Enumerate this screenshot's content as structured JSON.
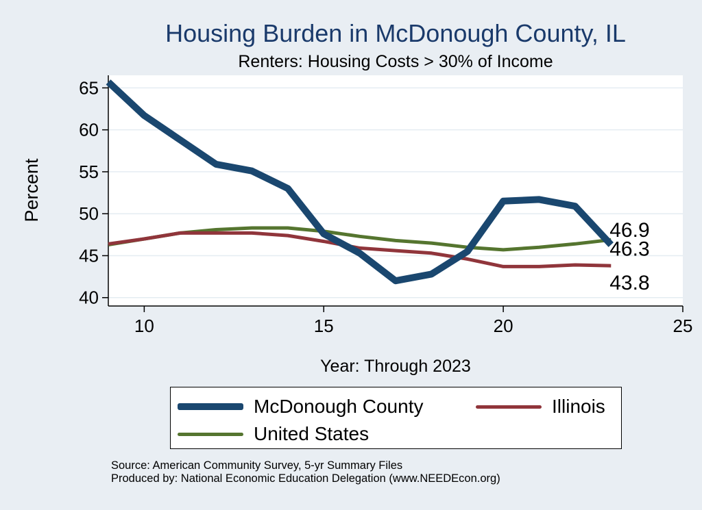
{
  "chart_data": {
    "type": "line",
    "title": "Housing Burden in McDonough County, IL",
    "subtitle": "Renters: Housing Costs > 30% of Income",
    "xlabel": "Year: Through 2023",
    "ylabel": "Percent",
    "xlim": [
      9,
      25
    ],
    "ylim": [
      39,
      66.5
    ],
    "xticks": [
      10,
      15,
      20,
      25
    ],
    "yticks": [
      40,
      45,
      50,
      55,
      60,
      65
    ],
    "grid": true,
    "legend_position": "bottom",
    "series": [
      {
        "name": "McDonough County",
        "color": "#1a476f",
        "line_width": "thick",
        "x": [
          9,
          10,
          11,
          12,
          13,
          14,
          15,
          16,
          17,
          18,
          19,
          20,
          21,
          22,
          23
        ],
        "values": [
          65.7,
          61.7,
          58.8,
          55.9,
          55.1,
          53.0,
          47.6,
          45.3,
          42.0,
          42.8,
          45.5,
          51.5,
          51.7,
          50.9,
          46.3
        ],
        "end_label": "46.3"
      },
      {
        "name": "Illinois",
        "color": "#90353b",
        "line_width": "medium",
        "x": [
          9,
          10,
          11,
          12,
          13,
          14,
          15,
          16,
          17,
          18,
          19,
          20,
          21,
          22,
          23
        ],
        "values": [
          46.4,
          47.0,
          47.7,
          47.7,
          47.7,
          47.4,
          46.7,
          45.9,
          45.6,
          45.3,
          44.6,
          43.7,
          43.7,
          43.9,
          43.8
        ],
        "end_label": "43.8"
      },
      {
        "name": "United States",
        "color": "#55752f",
        "line_width": "medium",
        "x": [
          9,
          10,
          11,
          12,
          13,
          14,
          15,
          16,
          17,
          18,
          19,
          20,
          21,
          22,
          23
        ],
        "values": [
          46.3,
          47.0,
          47.7,
          48.1,
          48.3,
          48.3,
          47.9,
          47.3,
          46.8,
          46.5,
          46.0,
          45.7,
          46.0,
          46.4,
          46.9
        ],
        "end_label": "46.9"
      }
    ],
    "source_lines": [
      "Source: American Community Survey, 5-yr Summary Files",
      "Produced by: National Economic Education Delegation (www.NEEDEcon.org)"
    ]
  }
}
